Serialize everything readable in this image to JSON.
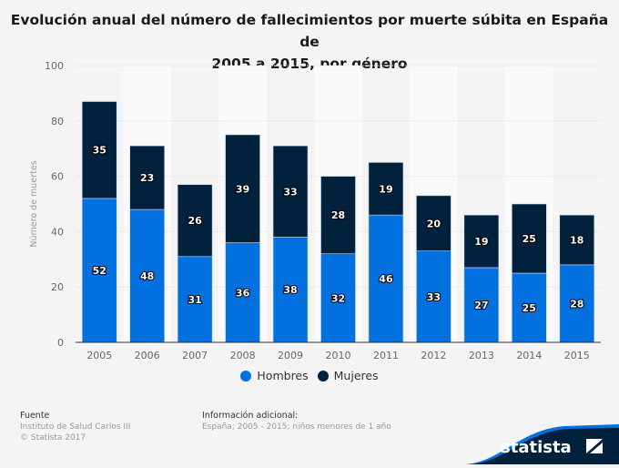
{
  "chart_data": {
    "type": "bar",
    "stacked": true,
    "title": "Evolución anual del número de fallecimientos por muerte súbita en España de 2005 a 2015, por género",
    "title_lines": [
      "Evolución anual del número de fallecimientos por muerte súbita en España de",
      "2005 a 2015, por género"
    ],
    "xlabel": "",
    "ylabel": "Número de muertes",
    "ylim": [
      0,
      100
    ],
    "yticks": [
      0,
      20,
      40,
      60,
      80,
      100
    ],
    "grid": true,
    "legend_position": "bottom-center",
    "categories": [
      "2005",
      "2006",
      "2007",
      "2008",
      "2009",
      "2010",
      "2011",
      "2012",
      "2013",
      "2014",
      "2015"
    ],
    "series": [
      {
        "name": "Hombres",
        "color": "#0271df",
        "values": [
          52,
          48,
          31,
          36,
          38,
          32,
          46,
          33,
          27,
          25,
          28
        ]
      },
      {
        "name": "Mujeres",
        "color": "#01213c",
        "values": [
          35,
          23,
          26,
          39,
          33,
          28,
          19,
          20,
          19,
          25,
          18
        ]
      }
    ]
  },
  "legend": {
    "items": [
      {
        "label": "Hombres",
        "color": "#0271df"
      },
      {
        "label": "Mujeres",
        "color": "#01213c"
      }
    ]
  },
  "footer": {
    "source_heading": "Fuente",
    "source_lines": [
      "Instituto de Salud Carlos III",
      "© Statista 2017"
    ],
    "info_heading": "Información adicional:",
    "info_text": "España; 2005 - 2015; niños menores de 1 año",
    "logo_text": "statista"
  }
}
